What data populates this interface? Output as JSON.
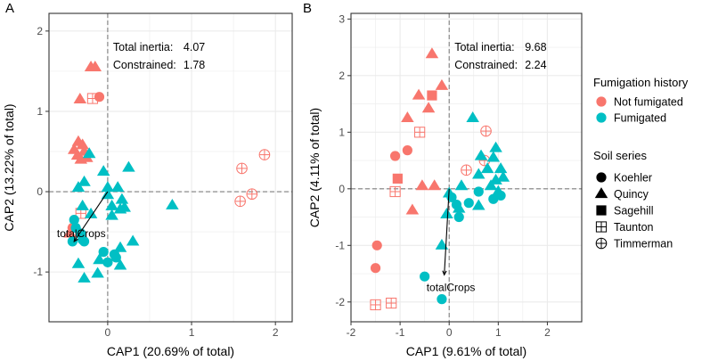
{
  "colors": {
    "not_fumigated": "#F8766D",
    "fumigated": "#00BFC4",
    "grid": "#EBEBEB",
    "panel_border": "#333333",
    "zero_line": "#7f7f7f",
    "axis_text": "#4d4d4d",
    "text": "#000000"
  },
  "legend": {
    "fumigation_title": "Fumigation history",
    "fumigation_items": [
      {
        "label": "Not fumigated",
        "key": "not_fumigated"
      },
      {
        "label": "Fumigated",
        "key": "fumigated"
      }
    ],
    "soil_title": "Soil series",
    "soil_items": [
      {
        "label": "Koehler",
        "shape": "circle"
      },
      {
        "label": "Quincy",
        "shape": "triangle"
      },
      {
        "label": "Sagehill",
        "shape": "square"
      },
      {
        "label": "Taunton",
        "shape": "square-plus"
      },
      {
        "label": "Timmerman",
        "shape": "circle-plus"
      }
    ]
  },
  "chart_data": [
    {
      "type": "scatter",
      "panel_label": "A",
      "xlabel": "CAP1 (20.69% of total)",
      "ylabel": "CAP2 (13.22% of total)",
      "xlim": [
        -0.7,
        2.2
      ],
      "ylim": [
        -1.62,
        2.22
      ],
      "xticks": [
        0,
        1,
        2
      ],
      "yticks": [
        -1,
        0,
        1,
        2
      ],
      "annotation_lines": [
        {
          "label": "Total inertia:",
          "value": "4.07"
        },
        {
          "label": "Constrained:",
          "value": "1.78"
        }
      ],
      "vector": {
        "label": "totalCrops",
        "x": -0.4,
        "y": -0.62
      },
      "points": [
        [
          -0.2,
          1.55,
          "triangle",
          "nf"
        ],
        [
          -0.15,
          1.55,
          "triangle",
          "nf"
        ],
        [
          -0.33,
          1.15,
          "triangle",
          "nf"
        ],
        [
          -0.1,
          1.18,
          "circle",
          "nf"
        ],
        [
          -0.18,
          1.16,
          "square-plus",
          "nf"
        ],
        [
          -0.35,
          0.62,
          "triangle",
          "nf"
        ],
        [
          -0.3,
          0.58,
          "triangle",
          "nf"
        ],
        [
          -0.4,
          0.52,
          "triangle",
          "nf"
        ],
        [
          -0.28,
          0.5,
          "triangle",
          "nf"
        ],
        [
          -0.36,
          0.45,
          "triangle",
          "nf"
        ],
        [
          -0.25,
          0.42,
          "triangle",
          "nf"
        ],
        [
          -0.32,
          0.4,
          "triangle",
          "nf"
        ],
        [
          -0.32,
          -0.27,
          "square-plus",
          "nf"
        ],
        [
          -0.42,
          -0.45,
          "circle",
          "nf"
        ],
        [
          -0.45,
          -0.52,
          "triangle",
          "nf"
        ],
        [
          1.6,
          0.29,
          "circle-plus",
          "nf"
        ],
        [
          1.87,
          0.46,
          "circle-plus",
          "nf"
        ],
        [
          1.72,
          -0.03,
          "circle-plus",
          "nf"
        ],
        [
          1.58,
          -0.12,
          "circle-plus",
          "nf"
        ],
        [
          -0.22,
          0.47,
          "triangle",
          "f"
        ],
        [
          -0.05,
          0.25,
          "triangle",
          "f"
        ],
        [
          0.0,
          0.05,
          "triangle",
          "f"
        ],
        [
          -0.28,
          0.12,
          "triangle",
          "f"
        ],
        [
          0.0,
          -0.04,
          "triangle",
          "f"
        ],
        [
          -0.35,
          0.05,
          "triangle",
          "f"
        ],
        [
          -0.3,
          -0.18,
          "triangle",
          "f"
        ],
        [
          -0.2,
          -0.28,
          "triangle",
          "f"
        ],
        [
          0.05,
          -0.3,
          "triangle",
          "f"
        ],
        [
          0.25,
          0.3,
          "triangle",
          "f"
        ],
        [
          0.12,
          0.05,
          "triangle",
          "f"
        ],
        [
          0.17,
          -0.1,
          "triangle",
          "f"
        ],
        [
          0.2,
          -0.2,
          "triangle",
          "f"
        ],
        [
          0.05,
          -0.18,
          "triangle",
          "f"
        ],
        [
          0.15,
          -0.22,
          "triangle",
          "f"
        ],
        [
          0.3,
          -0.62,
          "triangle",
          "f"
        ],
        [
          0.15,
          -0.7,
          "triangle",
          "f"
        ],
        [
          0.77,
          -0.17,
          "triangle",
          "f"
        ],
        [
          -0.4,
          -0.35,
          "circle",
          "f"
        ],
        [
          -0.38,
          -0.45,
          "circle",
          "f"
        ],
        [
          -0.32,
          -0.52,
          "circle",
          "f"
        ],
        [
          -0.28,
          -0.62,
          "circle",
          "f"
        ],
        [
          -0.42,
          -0.62,
          "circle",
          "f"
        ],
        [
          -0.3,
          -0.6,
          "circle",
          "f"
        ],
        [
          -0.35,
          -0.9,
          "triangle",
          "f"
        ],
        [
          -0.28,
          -1.08,
          "triangle",
          "f"
        ],
        [
          -0.1,
          -0.85,
          "triangle",
          "f"
        ],
        [
          0.0,
          -0.88,
          "circle",
          "f"
        ],
        [
          0.1,
          -0.82,
          "circle",
          "f"
        ],
        [
          0.15,
          -0.92,
          "triangle",
          "f"
        ],
        [
          -0.12,
          -1.02,
          "triangle",
          "f"
        ],
        [
          -0.05,
          -0.75,
          "circle",
          "f"
        ],
        [
          0.08,
          -0.78,
          "circle",
          "f"
        ]
      ]
    },
    {
      "type": "scatter",
      "panel_label": "B",
      "xlabel": "CAP1 (9.61% of total)",
      "ylabel": "CAP2 (4.11% of total)",
      "xlim": [
        -2.0,
        2.7
      ],
      "ylim": [
        -2.35,
        3.1
      ],
      "xticks": [
        -2,
        -1,
        0,
        1,
        2
      ],
      "yticks": [
        -2,
        -1,
        0,
        1,
        2,
        3
      ],
      "annotation_lines": [
        {
          "label": "Total inertia:",
          "value": "9.68"
        },
        {
          "label": "Constrained:",
          "value": "2.24"
        }
      ],
      "vector": {
        "label": "totalCrops",
        "x": -0.1,
        "y": -1.52
      },
      "points": [
        [
          -0.35,
          2.38,
          "triangle",
          "nf"
        ],
        [
          -0.15,
          1.82,
          "triangle",
          "nf"
        ],
        [
          -0.62,
          1.65,
          "triangle",
          "nf"
        ],
        [
          -0.35,
          1.65,
          "square",
          "nf"
        ],
        [
          -0.42,
          1.42,
          "triangle",
          "nf"
        ],
        [
          -0.85,
          1.25,
          "triangle",
          "nf"
        ],
        [
          -0.6,
          1.0,
          "square-plus",
          "nf"
        ],
        [
          -1.1,
          0.58,
          "circle",
          "nf"
        ],
        [
          -0.85,
          0.68,
          "circle",
          "nf"
        ],
        [
          -1.05,
          0.18,
          "square",
          "nf"
        ],
        [
          -1.1,
          -0.05,
          "square-plus",
          "nf"
        ],
        [
          -0.55,
          0.05,
          "triangle",
          "nf"
        ],
        [
          -0.3,
          0.05,
          "triangle",
          "nf"
        ],
        [
          -0.75,
          -0.38,
          "triangle",
          "nf"
        ],
        [
          -1.47,
          -1.0,
          "circle",
          "nf"
        ],
        [
          -1.5,
          -1.4,
          "circle",
          "nf"
        ],
        [
          -1.5,
          -2.05,
          "square-plus",
          "nf"
        ],
        [
          -1.18,
          -2.02,
          "square-plus",
          "nf"
        ],
        [
          0.75,
          1.02,
          "circle-plus",
          "nf"
        ],
        [
          0.35,
          0.33,
          "circle-plus",
          "nf"
        ],
        [
          0.72,
          0.5,
          "circle-plus",
          "nf"
        ],
        [
          0.48,
          1.25,
          "triangle",
          "f"
        ],
        [
          0.65,
          0.58,
          "triangle",
          "f"
        ],
        [
          0.95,
          0.72,
          "triangle",
          "f"
        ],
        [
          0.9,
          0.55,
          "triangle",
          "f"
        ],
        [
          0.78,
          0.35,
          "triangle",
          "f"
        ],
        [
          1.05,
          0.35,
          "triangle",
          "f"
        ],
        [
          0.6,
          0.25,
          "triangle",
          "f"
        ],
        [
          0.95,
          0.15,
          "triangle",
          "f"
        ],
        [
          1.1,
          0.2,
          "triangle",
          "f"
        ],
        [
          0.85,
          0.05,
          "triangle",
          "f"
        ],
        [
          1.0,
          -0.05,
          "triangle",
          "f"
        ],
        [
          0.25,
          0.05,
          "triangle",
          "f"
        ],
        [
          0.0,
          -0.08,
          "triangle",
          "f"
        ],
        [
          -0.05,
          -0.45,
          "triangle",
          "f"
        ],
        [
          0.2,
          -0.35,
          "triangle",
          "f"
        ],
        [
          0.6,
          -0.3,
          "triangle",
          "f"
        ],
        [
          0.05,
          -0.15,
          "circle",
          "f"
        ],
        [
          0.15,
          -0.28,
          "circle",
          "f"
        ],
        [
          0.2,
          -0.5,
          "circle",
          "f"
        ],
        [
          0.4,
          -0.25,
          "circle",
          "f"
        ],
        [
          0.6,
          -0.05,
          "circle",
          "f"
        ],
        [
          1.05,
          -0.12,
          "circle",
          "f"
        ],
        [
          0.9,
          -0.18,
          "circle",
          "f"
        ],
        [
          -0.15,
          -1.0,
          "triangle",
          "f"
        ],
        [
          -0.5,
          -1.55,
          "circle",
          "f"
        ],
        [
          -0.15,
          -1.95,
          "circle",
          "f"
        ]
      ]
    }
  ]
}
